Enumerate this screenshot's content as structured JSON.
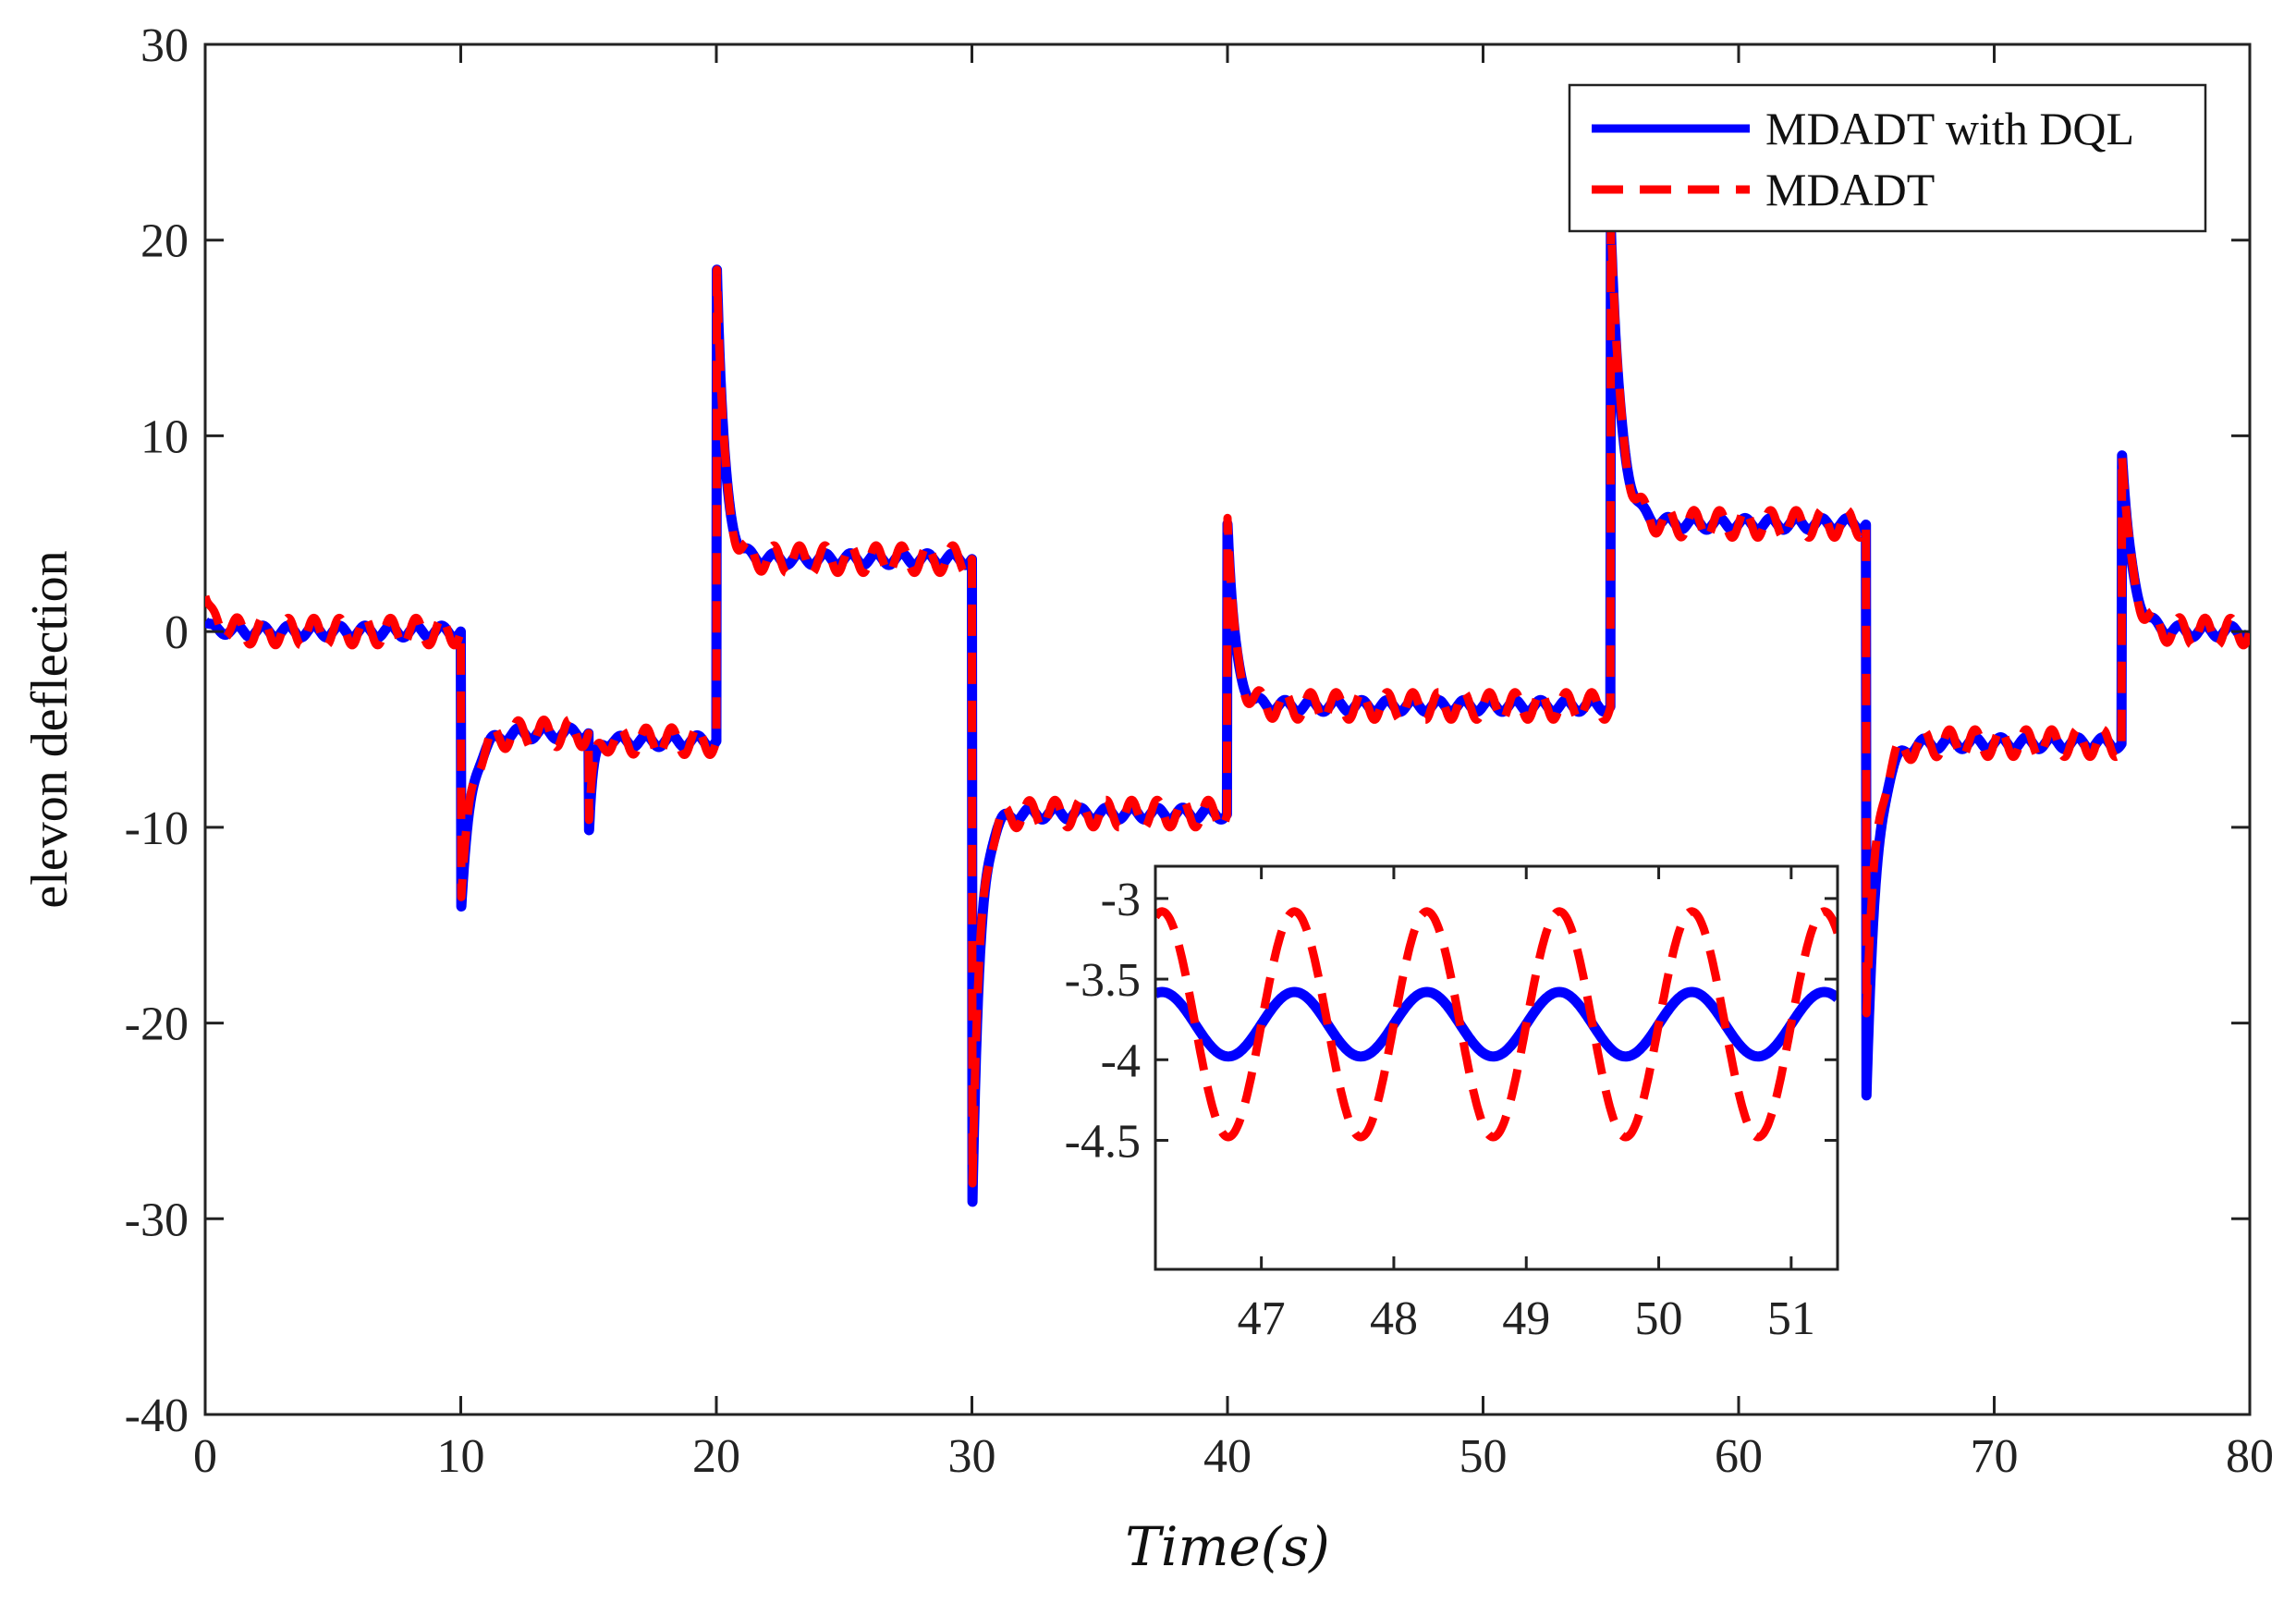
{
  "chart_data": [
    {
      "name": "main",
      "type": "line",
      "xlabel": "Time(s)",
      "ylabel": "elevon deflection",
      "xlim": [
        0,
        80
      ],
      "ylim": [
        -40,
        30
      ],
      "xticks": [
        "0",
        "10",
        "20",
        "30",
        "40",
        "50",
        "60",
        "70",
        "80"
      ],
      "yticks": [
        "30",
        "20",
        "10",
        "0",
        "-10",
        "-20",
        "-30",
        "-40"
      ],
      "grid": false,
      "legend_position": "top-right",
      "series": [
        {
          "name": "MDADT with DQL",
          "color": "#0000ff",
          "style": "solid",
          "segments": [
            {
              "t0": 0,
              "t1": 10,
              "base": 0,
              "peak": 0.5,
              "tau": 0.4,
              "osc": 0.3
            },
            {
              "t0": 10,
              "t1": 15,
              "base": -5.2,
              "peak": -14.5,
              "tau": 0.4,
              "osc": 0.3
            },
            {
              "t0": 15,
              "t1": 20,
              "base": -5.6,
              "peak": -10.8,
              "tau": 0.15,
              "osc": 0.3
            },
            {
              "t0": 20,
              "t1": 30,
              "base": 3.7,
              "peak": 19.5,
              "tau": 0.3,
              "osc": 0.3
            },
            {
              "t0": 30,
              "t1": 40,
              "base": -9.3,
              "peak": -30.5,
              "tau": 0.3,
              "osc": 0.3
            },
            {
              "t0": 40,
              "t1": 55,
              "base": -3.8,
              "peak": 5.5,
              "tau": 0.3,
              "osc": 0.3
            },
            {
              "t0": 55,
              "t1": 65,
              "base": 5.5,
              "peak": 20.5,
              "tau": 0.4,
              "osc": 0.3
            },
            {
              "t0": 65,
              "t1": 75,
              "base": -5.7,
              "peak": -23.7,
              "tau": 0.4,
              "osc": 0.3
            },
            {
              "t0": 75,
              "t1": 80,
              "base": 0,
              "peak": 9,
              "tau": 0.4,
              "osc": 0.3
            }
          ]
        },
        {
          "name": "MDADT",
          "color": "#ff0000",
          "style": "dashed",
          "segments": [
            {
              "t0": 0,
              "t1": 10,
              "base": 0,
              "peak": 1.8,
              "tau": 0.4,
              "osc": 0.7
            },
            {
              "t0": 10,
              "t1": 15,
              "base": -5.2,
              "peak": -14.0,
              "tau": 0.4,
              "osc": 0.7
            },
            {
              "t0": 15,
              "t1": 20,
              "base": -5.6,
              "peak": -10.2,
              "tau": 0.15,
              "osc": 0.7
            },
            {
              "t0": 20,
              "t1": 30,
              "base": 3.7,
              "peak": 19.5,
              "tau": 0.3,
              "osc": 0.7
            },
            {
              "t0": 30,
              "t1": 40,
              "base": -9.3,
              "peak": -29.5,
              "tau": 0.3,
              "osc": 0.7
            },
            {
              "t0": 40,
              "t1": 55,
              "base": -3.8,
              "peak": 5.8,
              "tau": 0.3,
              "osc": 0.7
            },
            {
              "t0": 55,
              "t1": 65,
              "base": 5.5,
              "peak": 21,
              "tau": 0.4,
              "osc": 0.7
            },
            {
              "t0": 65,
              "t1": 75,
              "base": -5.7,
              "peak": -19.5,
              "tau": 0.4,
              "osc": 0.7
            },
            {
              "t0": 75,
              "t1": 80,
              "base": 0,
              "peak": 9,
              "tau": 0.4,
              "osc": 0.7
            }
          ]
        }
      ]
    },
    {
      "name": "inset",
      "type": "line",
      "xlim": [
        46.2,
        51.35
      ],
      "ylim": [
        -5.3,
        -2.8
      ],
      "xticks": [
        "47",
        "48",
        "49",
        "50",
        "51"
      ],
      "yticks": [
        "-3",
        "-3.5",
        "-4",
        "-4.5"
      ],
      "series": [
        {
          "name": "MDADT with DQL",
          "color": "#0000ff",
          "style": "solid",
          "center": -3.78,
          "amplitude": 0.2,
          "period": 1.0,
          "peak_at": 47.25
        },
        {
          "name": "MDADT",
          "color": "#ff0000",
          "style": "dashed",
          "center": -3.78,
          "amplitude": 0.7,
          "period": 1.0,
          "peak_at": 47.25
        }
      ]
    }
  ]
}
